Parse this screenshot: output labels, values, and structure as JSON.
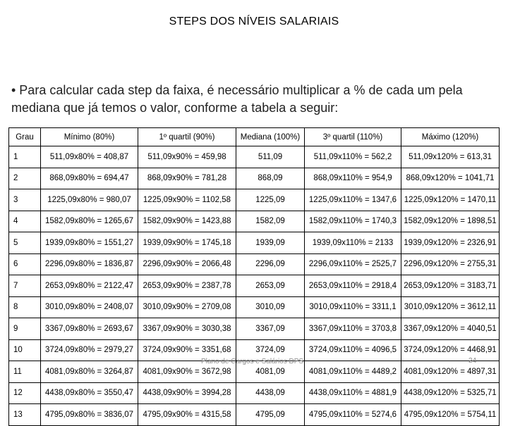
{
  "title": "STEPS DOS NÍVEIS SALARIAIS",
  "intro": "• Para calcular cada step da faixa, é necessário multiplicar a % de cada um pela mediana que já temos o valor, conforme a tabela a seguir:",
  "table": {
    "headers": [
      "Grau",
      "Mínimo (80%)",
      "1º quartil (90%)",
      "Mediana (100%)",
      "3º quartil (110%)",
      "Máximo (120%)"
    ],
    "rows": [
      [
        "1",
        "511,09x80% = 408,87",
        "511,09x90% = 459,98",
        "511,09",
        "511,09x110% = 562,2",
        "511,09x120% = 613,31"
      ],
      [
        "2",
        "868,09x80% = 694,47",
        "868,09x90% = 781,28",
        "868,09",
        "868,09x110% = 954,9",
        "868,09x120% = 1041,71"
      ],
      [
        "3",
        "1225,09x80% = 980,07",
        "1225,09x90% = 1102,58",
        "1225,09",
        "1225,09x110% = 1347,6",
        "1225,09x120% = 1470,11"
      ],
      [
        "4",
        "1582,09x80% = 1265,67",
        "1582,09x90% = 1423,88",
        "1582,09",
        "1582,09x110% = 1740,3",
        "1582,09x120% = 1898,51"
      ],
      [
        "5",
        "1939,09x80% = 1551,27",
        "1939,09x90% = 1745,18",
        "1939,09",
        "1939,09x110% = 2133",
        "1939,09x120% = 2326,91"
      ],
      [
        "6",
        "2296,09x80% = 1836,87",
        "2296,09x90% = 2066,48",
        "2296,09",
        "2296,09x110% = 2525,7",
        "2296,09x120% = 2755,31"
      ],
      [
        "7",
        "2653,09x80% = 2122,47",
        "2653,09x90% = 2387,78",
        "2653,09",
        "2653,09x110% = 2918,4",
        "2653,09x120% = 3183,71"
      ],
      [
        "8",
        "3010,09x80% = 2408,07",
        "3010,09x90% = 2709,08",
        "3010,09",
        "3010,09x110% = 3311,1",
        "3010,09x120% = 3612,11"
      ],
      [
        "9",
        "3367,09x80% = 2693,67",
        "3367,09x90% = 3030,38",
        "3367,09",
        "3367,09x110% = 3703,8",
        "3367,09x120% = 4040,51"
      ],
      [
        "10",
        "3724,09x80% = 2979,27",
        "3724,09x90% = 3351,68",
        "3724,09",
        "3724,09x110% = 4096,5",
        "3724,09x120% = 4468,91"
      ],
      [
        "11",
        "4081,09x80% = 3264,87",
        "4081,09x90% = 3672,98",
        "4081,09",
        "4081,09x110% = 4489,2",
        "4081,09x120% = 4897,31"
      ],
      [
        "12",
        "4438,09x80% = 3550,47",
        "4438,09x90% = 3994,28",
        "4438,09",
        "4438,09x110% = 4881,9",
        "4438,09x120% = 5325,71"
      ],
      [
        "13",
        "4795,09x80% = 3836,07",
        "4795,09x90% = 4315,58",
        "4795,09",
        "4795,09x110% = 5274,6",
        "4795,09x120% = 5754,11"
      ]
    ]
  },
  "footer": "Plano de Cargos e Salários DPS",
  "page_number": "24"
}
